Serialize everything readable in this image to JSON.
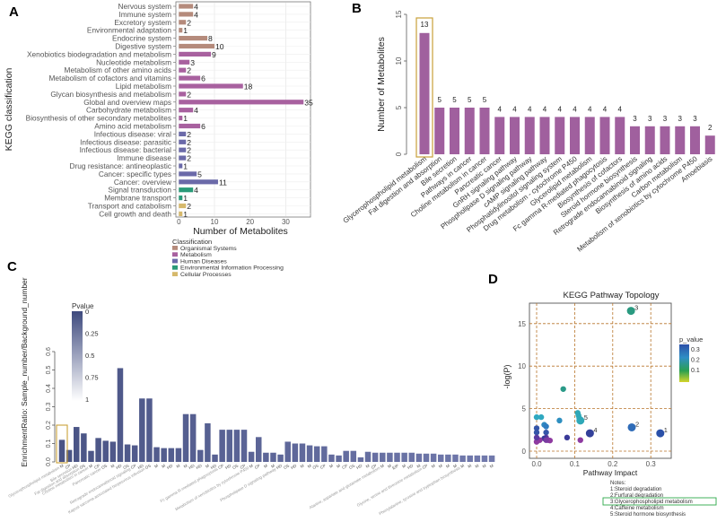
{
  "panels": {
    "a": "A",
    "b": "B",
    "c": "C",
    "d": "D"
  },
  "chart_data": [
    {
      "type": "bar",
      "orientation": "horizontal",
      "panel": "A",
      "xlabel": "Number of Metabolites",
      "ylabel": "KEGG classification",
      "xlim": [
        0,
        37
      ],
      "xticks": [
        0,
        10,
        20,
        30
      ],
      "grid": true,
      "legend_title": "Classification",
      "legend_position": "bottom",
      "classes": [
        {
          "name": "Organismal Systems",
          "color": "#b58b7c"
        },
        {
          "name": "Metabolism",
          "color": "#a8619f"
        },
        {
          "name": "Human Diseases",
          "color": "#6b6aa9"
        },
        {
          "name": "Environmental Information Processing",
          "color": "#2a9a78"
        },
        {
          "name": "Cellular Processes",
          "color": "#d6b96c"
        }
      ],
      "categories": [
        "Nervous system",
        "Immune system",
        "Excretory system",
        "Environmental adaptation",
        "Endocrine system",
        "Digestive system",
        "Xenobiotics biodegradation and metabolism",
        "Nucleotide metabolism",
        "Metabolism of other amino acids",
        "Metabolism of cofactors and vitamins",
        "Lipid metabolism",
        "Glycan biosynthesis and metabolism",
        "Global and overview maps",
        "Carbohydrate metabolism",
        "Biosynthesis of other secondary metabolites",
        "Amino acid metabolism",
        "Infectious disease: viral",
        "Infectious disease: parasitic",
        "Infectious disease: bacterial",
        "Immune disease",
        "Drug resistance: antineoplastic",
        "Cancer: specific types",
        "Cancer: overview",
        "Signal transduction",
        "Membrane transport",
        "Transport and catabolism",
        "Cell growth and death"
      ],
      "values": [
        4,
        4,
        2,
        1,
        8,
        10,
        9,
        3,
        2,
        6,
        18,
        2,
        35,
        4,
        1,
        6,
        2,
        2,
        2,
        2,
        1,
        5,
        11,
        4,
        1,
        2,
        1
      ],
      "class_index": [
        0,
        0,
        0,
        0,
        0,
        0,
        1,
        1,
        1,
        1,
        1,
        1,
        1,
        1,
        1,
        1,
        2,
        2,
        2,
        2,
        2,
        2,
        2,
        3,
        3,
        4,
        4
      ]
    },
    {
      "type": "bar",
      "panel": "B",
      "ylabel": "Number of Metabolites",
      "ylim": [
        0,
        15
      ],
      "yticks": [
        0,
        5,
        10,
        15
      ],
      "bar_color": "#a0609e",
      "highlight_color": "#c9a13a",
      "highlight_index": 0,
      "categories": [
        "Glycerophospholipid metabolism",
        "Fat digestion and absorption",
        "Bile secretion",
        "Pathways in cancer",
        "Choline metabolism in cancer",
        "Pancreatic cancer",
        "GnRH signaling pathway",
        "Phospholipase D signaling pathway",
        "cAMP signaling pathway",
        "Phosphatidylinositol signaling system",
        "Drug metabolism - cytochrome P450",
        "Glycerolipid metabolism",
        "Fc gamma R-mediated phagocytosis",
        "Biosynthesis of cofactors",
        "Steroid hormone biosynthesis",
        "Retrograde endocannabinoid signaling",
        "Biosynthesis of amino acids",
        "Carbon metabolism",
        "Metabolism of xenobiotics by cytochrome P450",
        "Amoebiasis"
      ],
      "values": [
        13,
        5,
        5,
        5,
        5,
        4,
        4,
        4,
        4,
        4,
        4,
        4,
        4,
        4,
        3,
        3,
        3,
        3,
        3,
        2
      ]
    },
    {
      "type": "bar",
      "panel": "C",
      "ylabel": "EnrichmentRatio: Sample_number/Background_number",
      "ylim": [
        0,
        0.6
      ],
      "yticks": [
        "0.0",
        "0.1",
        "0.2",
        "0.3",
        "0.4",
        "0.5",
        "0.6"
      ],
      "colorbar_title": "Pvalue",
      "colorbar_ticks": [
        "0",
        "0.25",
        "0.5",
        "0.75",
        "1"
      ],
      "highlight_color": "#c9a13a",
      "highlight_index": 0,
      "values": [
        0.12,
        0.065,
        0.19,
        0.155,
        0.06,
        0.13,
        0.115,
        0.11,
        0.51,
        0.095,
        0.09,
        0.345,
        0.345,
        0.08,
        0.075,
        0.075,
        0.075,
        0.26,
        0.26,
        0.065,
        0.21,
        0.04,
        0.175,
        0.175,
        0.175,
        0.175,
        0.055,
        0.135,
        0.05,
        0.05,
        0.04,
        0.11,
        0.1,
        0.1,
        0.09,
        0.085,
        0.085,
        0.04,
        0.035,
        0.06,
        0.06,
        0.025,
        0.055,
        0.05,
        0.05,
        0.05,
        0.05,
        0.05,
        0.05,
        0.045,
        0.045,
        0.045,
        0.04,
        0.04,
        0.04,
        0.035,
        0.035,
        0.035,
        0.035,
        0.035
      ],
      "codes": [
        "M",
        "CP",
        "HD",
        "OS",
        "M",
        "CP",
        "OS",
        "M",
        "HD",
        "OS",
        "CP",
        "HD",
        "OS",
        "M",
        "M",
        "HD",
        "M",
        "M",
        "HD",
        "HD",
        "M",
        "HD",
        "CP",
        "HD",
        "OS",
        "CP",
        "M",
        "CP",
        "M",
        "M",
        "HD",
        "OS",
        "HD",
        "M",
        "M",
        "OS",
        "CP",
        "M",
        "M",
        "CP",
        "OS",
        "HD",
        "M",
        "CP",
        "M",
        "M",
        "EIP",
        "M",
        "HD",
        "M",
        "CP",
        "M",
        "M",
        "M",
        "M",
        "M",
        "M",
        "M",
        "M",
        "M"
      ],
      "visible_names": [
        "Glycerophospholipid metabolism",
        "Bile secretion",
        "Choline metabolism in cancer",
        "Fat digestion and absorption",
        "Pancreatic cancer",
        "Retrograde endocannabinoid signaling",
        "Fc gamma R-mediated phagocytosis",
        "Metabolism of xenobiotics by cytochrome P450",
        "Phospholipase D signaling pathway",
        "Kaposi sarcoma-associated herpesvirus infection",
        "Alanine, aspartate and glutamate metabolism",
        "Glycine, serine and threonine metabolism",
        "Phenylalanine, tyrosine and tryptophan biosynthesis"
      ]
    },
    {
      "type": "scatter",
      "panel": "D",
      "title": "KEGG Pathway Topology",
      "xlabel": "Pathway Impact",
      "ylabel": "-log(P)",
      "xlim": [
        -0.02,
        0.35
      ],
      "ylim": [
        -1,
        17
      ],
      "xticks": [
        "0.0",
        "0.1",
        "0.2",
        "0.3"
      ],
      "yticks": [
        "0",
        "5",
        "10",
        "15"
      ],
      "grid": "dashed",
      "legend_title": "p_value",
      "legend_ticks": [
        "0.3",
        "0.2",
        "0.1"
      ],
      "legend_position": "right",
      "points": [
        {
          "x": 0.325,
          "y": 2.1,
          "color": "#2b50a8",
          "label": "1"
        },
        {
          "x": 0.25,
          "y": 2.8,
          "color": "#2f6cb8",
          "label": "2"
        },
        {
          "x": 0.248,
          "y": 16.5,
          "color": "#2a9a80",
          "label": "3"
        },
        {
          "x": 0.14,
          "y": 2.1,
          "color": "#33409a",
          "label": "4"
        },
        {
          "x": 0.115,
          "y": 3.6,
          "color": "#2fa8b8",
          "label": "5"
        },
        {
          "x": 0.108,
          "y": 4.5,
          "color": "#2fa8b8",
          "label": ""
        },
        {
          "x": 0.11,
          "y": 4.2,
          "color": "#2fa8b8",
          "label": ""
        },
        {
          "x": 0.112,
          "y": 3.9,
          "color": "#2fa8b8",
          "label": ""
        },
        {
          "x": 0.07,
          "y": 7.3,
          "color": "#2a9a88",
          "label": ""
        },
        {
          "x": 0.06,
          "y": 3.6,
          "color": "#2e8fc0",
          "label": ""
        },
        {
          "x": 0.012,
          "y": 4.0,
          "color": "#2fa8c0",
          "label": ""
        },
        {
          "x": 0.0,
          "y": 4.0,
          "color": "#2fa8c0",
          "label": ""
        },
        {
          "x": 0.02,
          "y": 3.1,
          "color": "#2e88c0",
          "label": ""
        },
        {
          "x": 0.025,
          "y": 2.9,
          "color": "#2e7cc0",
          "label": ""
        },
        {
          "x": 0.025,
          "y": 2.2,
          "color": "#3555a8",
          "label": ""
        },
        {
          "x": 0.0,
          "y": 2.2,
          "color": "#3555a8",
          "label": ""
        },
        {
          "x": 0.0,
          "y": 2.7,
          "color": "#3555a8",
          "label": ""
        },
        {
          "x": 0.08,
          "y": 1.6,
          "color": "#3a3a98",
          "label": ""
        },
        {
          "x": 0.115,
          "y": 1.3,
          "color": "#8e3aa0",
          "label": ""
        },
        {
          "x": 0.025,
          "y": 1.6,
          "color": "#5a3aa0",
          "label": ""
        },
        {
          "x": 0.02,
          "y": 1.5,
          "color": "#3a3a98",
          "label": ""
        },
        {
          "x": 0.03,
          "y": 1.3,
          "color": "#8e3aa0",
          "label": ""
        },
        {
          "x": 0.035,
          "y": 1.25,
          "color": "#8e3aa0",
          "label": ""
        },
        {
          "x": 0.025,
          "y": 1.3,
          "color": "#7a3aa0",
          "label": ""
        },
        {
          "x": 0.008,
          "y": 1.3,
          "color": "#8e3aa0",
          "label": ""
        },
        {
          "x": 0.0,
          "y": 1.1,
          "color": "#8e3aa0",
          "label": ""
        },
        {
          "x": 0.0,
          "y": 1.6,
          "color": "#5a3aa0",
          "label": ""
        }
      ],
      "notes_title": "Notes:",
      "notes": [
        "1:Steroid degradation",
        "2:Furfural degradation",
        "3:Glycerophospholipid metabolism",
        "4:Caffeine metabolism",
        "5:Steroid hormone biosynthesis"
      ],
      "highlight_note_index": 2,
      "highlight_color": "#2eaa4a"
    }
  ]
}
